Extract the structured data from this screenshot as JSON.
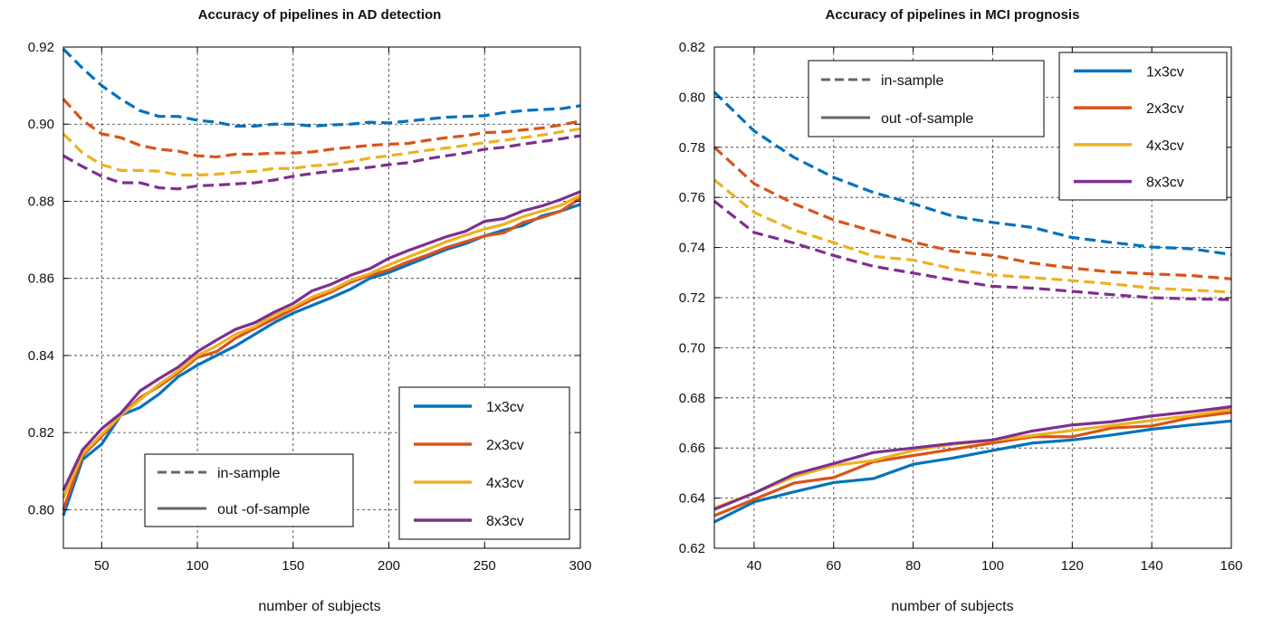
{
  "colors": {
    "1x3cv": "#0072BD",
    "2x3cv": "#D95319",
    "4x3cv": "#EDB120",
    "8x3cv": "#7E2F8E",
    "style_key": "#666666"
  },
  "chart_data": [
    {
      "type": "line",
      "title": "Accuracy of pipelines in AD detection",
      "xlabel": "number of subjects",
      "ylabel": "",
      "xlim": [
        30,
        300
      ],
      "ylim": [
        0.79,
        0.92
      ],
      "xticks": [
        50,
        100,
        150,
        200,
        250,
        300
      ],
      "xtick_labels": [
        "50",
        "100",
        "150",
        "200",
        "250",
        "300"
      ],
      "yticks": [
        0.8,
        0.82,
        0.84,
        0.86,
        0.88,
        0.9,
        0.92
      ],
      "ytick_labels": [
        "0.80",
        "0.82",
        "0.84",
        "0.86",
        "0.88",
        "0.90",
        "0.92"
      ],
      "grid": true,
      "x": [
        30,
        40,
        50,
        60,
        70,
        80,
        90,
        100,
        110,
        120,
        130,
        140,
        150,
        160,
        170,
        180,
        190,
        200,
        210,
        220,
        230,
        240,
        250,
        260,
        270,
        280,
        290,
        300
      ],
      "series_legend_position": "lower-right",
      "style_legend_position": "lower-center",
      "style_legend": [
        {
          "label": "in-sample",
          "dash": "dashed"
        },
        {
          "label": "out -of-sample",
          "dash": "solid"
        }
      ],
      "series": [
        {
          "name": "1x3cv",
          "color_key": "1x3cv",
          "in_sample": [
            0.9195,
            0.9145,
            0.91,
            0.9065,
            0.9035,
            0.902,
            0.902,
            0.901,
            0.9005,
            0.8995,
            0.8995,
            0.9,
            0.9,
            0.8995,
            0.8998,
            0.9,
            0.9005,
            0.9003,
            0.9008,
            0.9013,
            0.9018,
            0.902,
            0.9022,
            0.903,
            0.9035,
            0.9038,
            0.904,
            0.9048
          ],
          "out_of_sample": [
            0.7985,
            0.813,
            0.817,
            0.8245,
            0.8265,
            0.83,
            0.8345,
            0.8375,
            0.84,
            0.8425,
            0.8455,
            0.8485,
            0.851,
            0.853,
            0.855,
            0.8572,
            0.86,
            0.8615,
            0.8635,
            0.8655,
            0.8675,
            0.869,
            0.871,
            0.8725,
            0.8737,
            0.8762,
            0.8775,
            0.8792
          ]
        },
        {
          "name": "2x3cv",
          "color_key": "2x3cv",
          "in_sample": [
            0.9065,
            0.901,
            0.8975,
            0.8965,
            0.8945,
            0.8935,
            0.893,
            0.8918,
            0.8915,
            0.8922,
            0.8922,
            0.8925,
            0.8925,
            0.8928,
            0.8935,
            0.894,
            0.8945,
            0.8948,
            0.895,
            0.8958,
            0.8965,
            0.897,
            0.8978,
            0.898,
            0.8985,
            0.899,
            0.8998,
            0.9008
          ],
          "out_of_sample": [
            0.8,
            0.814,
            0.819,
            0.8245,
            0.829,
            0.832,
            0.8355,
            0.8395,
            0.841,
            0.8445,
            0.847,
            0.8495,
            0.852,
            0.8545,
            0.8565,
            0.859,
            0.8608,
            0.8622,
            0.8643,
            0.866,
            0.868,
            0.8695,
            0.871,
            0.8718,
            0.8745,
            0.8758,
            0.8775,
            0.8808
          ]
        },
        {
          "name": "4x3cv",
          "color_key": "4x3cv",
          "in_sample": [
            0.8975,
            0.8925,
            0.8895,
            0.888,
            0.888,
            0.8878,
            0.8868,
            0.8868,
            0.887,
            0.8875,
            0.8878,
            0.8885,
            0.8885,
            0.8892,
            0.8895,
            0.8903,
            0.8912,
            0.8918,
            0.8925,
            0.8932,
            0.8938,
            0.8945,
            0.8952,
            0.8958,
            0.8965,
            0.8972,
            0.898,
            0.8988
          ],
          "out_of_sample": [
            0.803,
            0.8145,
            0.8195,
            0.8245,
            0.8285,
            0.8325,
            0.836,
            0.84,
            0.8425,
            0.8455,
            0.8475,
            0.8505,
            0.8525,
            0.8552,
            0.857,
            0.8595,
            0.8612,
            0.8635,
            0.8655,
            0.8675,
            0.8695,
            0.8712,
            0.8728,
            0.874,
            0.876,
            0.8775,
            0.879,
            0.8815
          ]
        },
        {
          "name": "8x3cv",
          "color_key": "8x3cv",
          "in_sample": [
            0.8918,
            0.889,
            0.8865,
            0.8848,
            0.8848,
            0.8835,
            0.8832,
            0.884,
            0.8842,
            0.8845,
            0.8848,
            0.8855,
            0.8865,
            0.8872,
            0.8878,
            0.8883,
            0.8888,
            0.8895,
            0.89,
            0.891,
            0.8918,
            0.8925,
            0.8935,
            0.894,
            0.8948,
            0.8955,
            0.8962,
            0.897
          ],
          "out_of_sample": [
            0.805,
            0.8155,
            0.821,
            0.825,
            0.8308,
            0.834,
            0.837,
            0.841,
            0.844,
            0.8468,
            0.8485,
            0.8512,
            0.8535,
            0.8568,
            0.8585,
            0.8608,
            0.8625,
            0.8652,
            0.8672,
            0.869,
            0.8708,
            0.8722,
            0.8748,
            0.8755,
            0.8775,
            0.8788,
            0.8805,
            0.8825
          ]
        }
      ]
    },
    {
      "type": "line",
      "title": "Accuracy of pipelines in MCI prognosis",
      "xlabel": "number of subjects",
      "ylabel": "",
      "xlim": [
        30,
        160
      ],
      "ylim": [
        0.62,
        0.82
      ],
      "xticks": [
        40,
        60,
        80,
        100,
        120,
        140,
        160
      ],
      "xtick_labels": [
        "40",
        "60",
        "80",
        "100",
        "120",
        "140",
        "160"
      ],
      "yticks": [
        0.62,
        0.64,
        0.66,
        0.68,
        0.7,
        0.72,
        0.74,
        0.76,
        0.78,
        0.8,
        0.82
      ],
      "ytick_labels": [
        "0.62",
        "0.64",
        "0.66",
        "0.68",
        "0.70",
        "0.72",
        "0.74",
        "0.76",
        "0.78",
        "0.80",
        "0.82"
      ],
      "grid": true,
      "x": [
        30,
        40,
        50,
        60,
        70,
        80,
        90,
        100,
        110,
        120,
        130,
        140,
        150,
        160
      ],
      "series_legend_position": "top-right",
      "style_legend_position": "top-left",
      "style_legend": [
        {
          "label": "in-sample",
          "dash": "dashed"
        },
        {
          "label": "out -of-sample",
          "dash": "solid"
        }
      ],
      "series": [
        {
          "name": "1x3cv",
          "color_key": "1x3cv",
          "in_sample": [
            0.802,
            0.7865,
            0.776,
            0.768,
            0.762,
            0.7575,
            0.7525,
            0.75,
            0.748,
            0.744,
            0.742,
            0.7402,
            0.7395,
            0.7372
          ],
          "out_of_sample": [
            0.6305,
            0.6385,
            0.6425,
            0.6462,
            0.6478,
            0.6535,
            0.656,
            0.659,
            0.662,
            0.6632,
            0.6652,
            0.6675,
            0.6692,
            0.6708
          ]
        },
        {
          "name": "2x3cv",
          "color_key": "2x3cv",
          "in_sample": [
            0.78,
            0.7655,
            0.7575,
            0.751,
            0.7465,
            0.7422,
            0.7385,
            0.7368,
            0.7338,
            0.7318,
            0.7302,
            0.7295,
            0.7288,
            0.7275
          ],
          "out_of_sample": [
            0.633,
            0.6395,
            0.646,
            0.6482,
            0.6545,
            0.657,
            0.6595,
            0.662,
            0.6645,
            0.6645,
            0.668,
            0.6688,
            0.6722,
            0.6742
          ]
        },
        {
          "name": "4x3cv",
          "color_key": "4x3cv",
          "in_sample": [
            0.767,
            0.754,
            0.747,
            0.742,
            0.7365,
            0.735,
            0.7315,
            0.729,
            0.728,
            0.7268,
            0.7255,
            0.7238,
            0.723,
            0.7222
          ],
          "out_of_sample": [
            0.636,
            0.642,
            0.6485,
            0.653,
            0.655,
            0.659,
            0.6615,
            0.663,
            0.665,
            0.667,
            0.669,
            0.671,
            0.673,
            0.6755
          ]
        },
        {
          "name": "8x3cv",
          "color_key": "8x3cv",
          "in_sample": [
            0.7585,
            0.746,
            0.7418,
            0.7368,
            0.7325,
            0.7298,
            0.727,
            0.7245,
            0.7238,
            0.7225,
            0.7212,
            0.72,
            0.7195,
            0.7192
          ],
          "out_of_sample": [
            0.6355,
            0.642,
            0.6495,
            0.6538,
            0.6582,
            0.66,
            0.6618,
            0.6632,
            0.6668,
            0.6692,
            0.6705,
            0.6728,
            0.6745,
            0.6765
          ]
        }
      ]
    }
  ]
}
